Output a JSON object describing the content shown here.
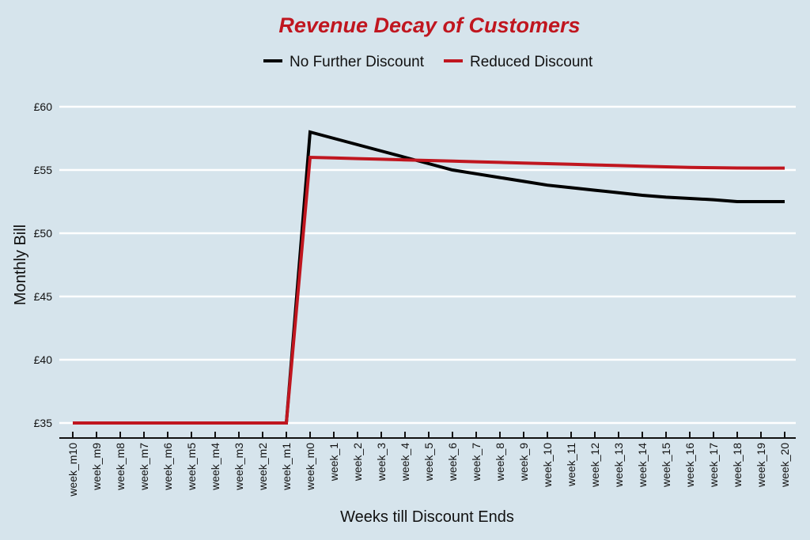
{
  "chart_data": {
    "type": "line",
    "title": "Revenue Decay of Customers",
    "xlabel": "Weeks till Discount Ends",
    "ylabel": "Monthly Bill",
    "ylim": [
      35,
      60
    ],
    "yticks": [
      35,
      40,
      45,
      50,
      55,
      60
    ],
    "ytick_labels": [
      "£35",
      "£40",
      "£45",
      "£50",
      "£55",
      "£60"
    ],
    "grid": "horizontal",
    "legend_position": "top",
    "categories": [
      "week_m10",
      "week_m9",
      "week_m8",
      "week_m7",
      "week_m6",
      "week_m5",
      "week_m4",
      "week_m3",
      "week_m2",
      "week_m1",
      "week_m0",
      "week_1",
      "week_2",
      "week_3",
      "week_4",
      "week_5",
      "week_6",
      "week_7",
      "week_8",
      "week_9",
      "week_10",
      "week_11",
      "week_12",
      "week_13",
      "week_14",
      "week_15",
      "week_16",
      "week_17",
      "week_18",
      "week_19",
      "week_20"
    ],
    "series": [
      {
        "name": "No Further Discount",
        "color": "#000000",
        "values": [
          35,
          35,
          35,
          35,
          35,
          35,
          35,
          35,
          35,
          35,
          58,
          57.5,
          57.0,
          56.5,
          56.0,
          55.5,
          55.0,
          54.7,
          54.4,
          54.1,
          53.8,
          53.6,
          53.4,
          53.2,
          53.0,
          52.85,
          52.75,
          52.65,
          52.5,
          52.5,
          52.5
        ]
      },
      {
        "name": "Reduced Discount",
        "color": "#c0161f",
        "values": [
          35,
          35,
          35,
          35,
          35,
          35,
          35,
          35,
          35,
          35,
          56,
          55.95,
          55.9,
          55.85,
          55.8,
          55.75,
          55.7,
          55.65,
          55.6,
          55.55,
          55.5,
          55.45,
          55.4,
          55.35,
          55.3,
          55.25,
          55.2,
          55.18,
          55.16,
          55.15,
          55.15
        ]
      }
    ]
  }
}
